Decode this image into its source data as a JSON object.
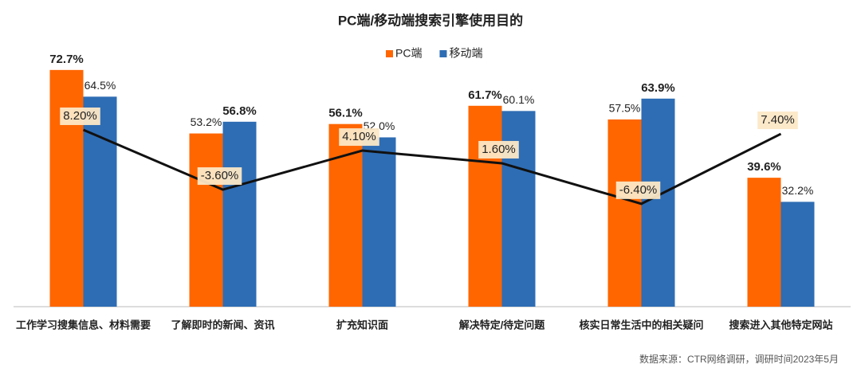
{
  "chart_data": {
    "type": "bar_line",
    "title": "PC端/移动端搜索引擎使用目的",
    "source": "数据来源：CTR网络调研，调研时间2023年5月",
    "categories": [
      "工作学习搜集信息、材料需要",
      "了解即时的新闻、资讯",
      "扩充知识面",
      "解决特定/待定问题",
      "核实日常生活中的相关疑问",
      "搜索进入其他特定网站"
    ],
    "ylim": [
      0,
      80
    ],
    "y2lim": [
      -26.7,
      24.7
    ],
    "legend": "top",
    "series": [
      {
        "name": "PC端",
        "color": "#ff6600",
        "values": [
          72.7,
          53.2,
          56.1,
          61.7,
          57.5,
          39.6
        ],
        "value_labels": [
          "72.7%",
          "53.2%",
          "56.1%",
          "61.7%",
          "57.5%",
          "39.6%"
        ]
      },
      {
        "name": "移动端",
        "color": "#2e6db4",
        "values": [
          64.5,
          56.8,
          52.0,
          60.1,
          63.9,
          32.2
        ],
        "value_labels": [
          "64.5%",
          "56.8%",
          "52.0%",
          "60.1%",
          "63.9%",
          "32.2%"
        ]
      },
      {
        "type": "line",
        "axis": "y2",
        "color": "#111111",
        "values": [
          8.2,
          -3.6,
          4.1,
          1.6,
          -6.4,
          7.4
        ],
        "value_labels": [
          "8.20%",
          "-3.60%",
          "4.10%",
          "1.60%",
          "-6.40%",
          "7.40%"
        ]
      }
    ]
  }
}
